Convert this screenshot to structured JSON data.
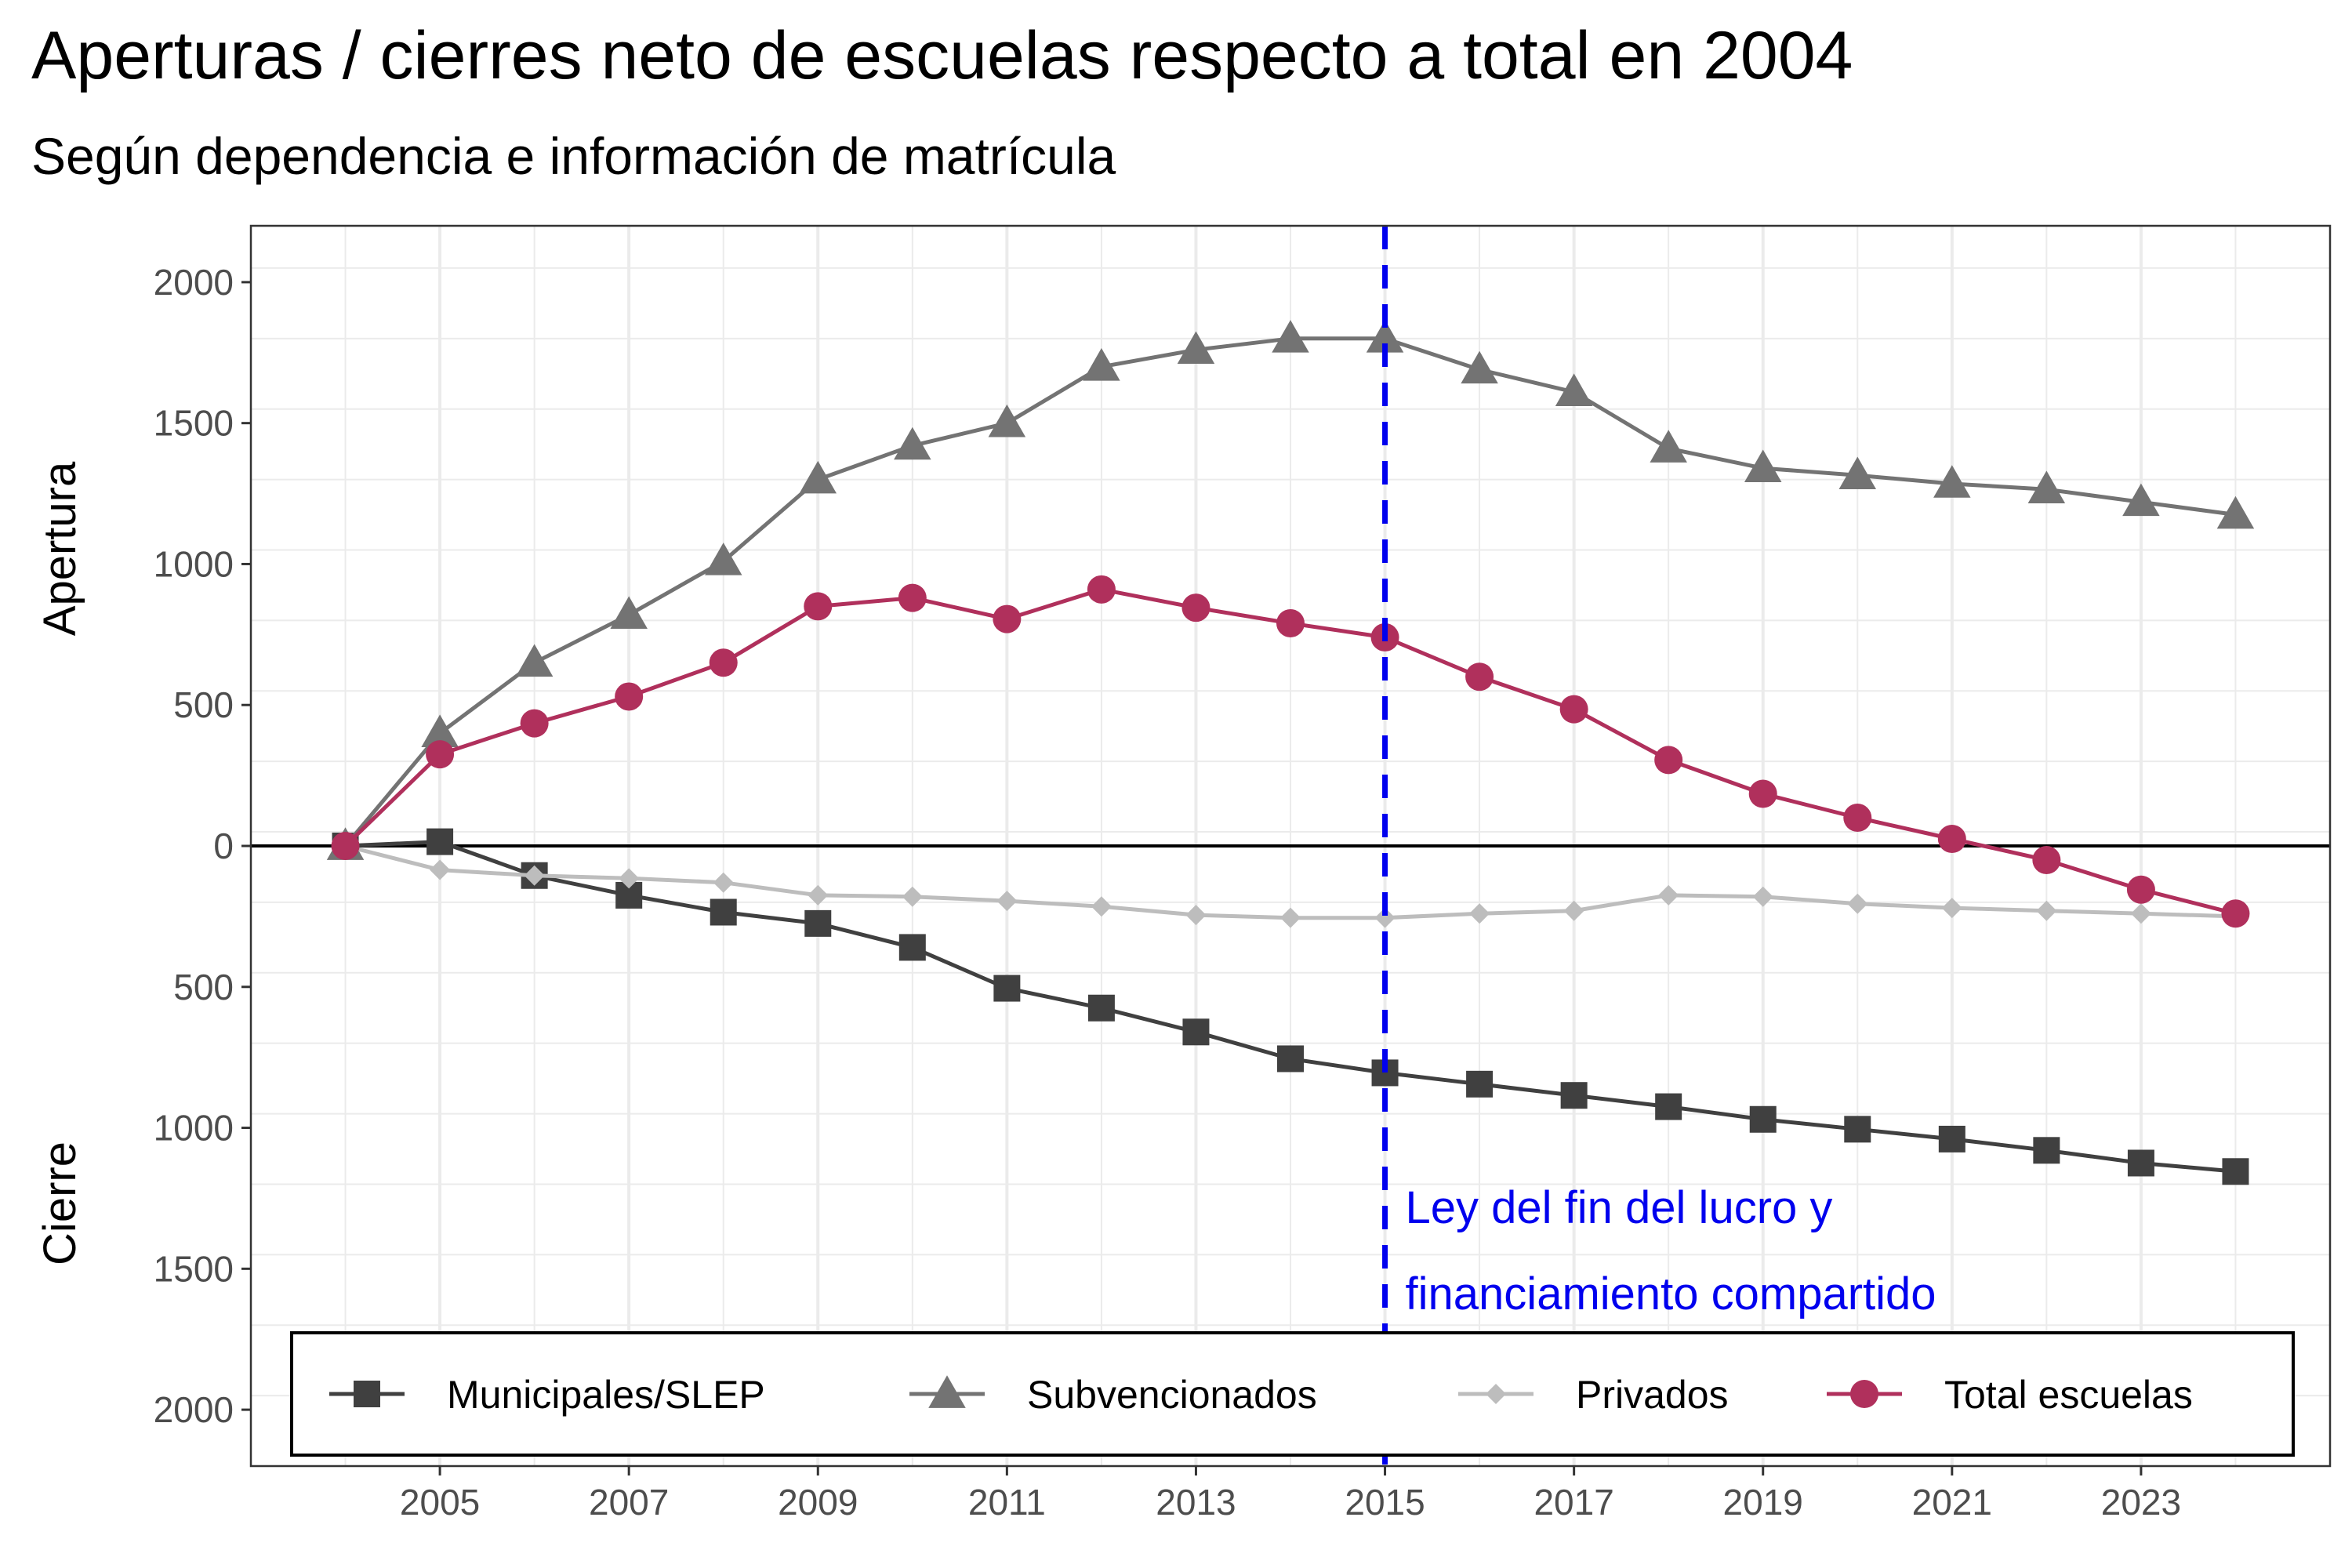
{
  "chart_data": {
    "type": "line",
    "title": "Aperturas / cierres neto de escuelas respecto a total en 2004",
    "subtitle": "Según dependencia e información de matrícula",
    "ylabel_top": "Apertura",
    "ylabel_bottom": "Cierre",
    "xlim": [
      2003,
      2025
    ],
    "ylim": [
      -2200,
      2200
    ],
    "x_ticks": [
      2005,
      2007,
      2009,
      2011,
      2013,
      2015,
      2017,
      2019,
      2021,
      2023
    ],
    "y_ticks": [
      {
        "value": 2000,
        "label": "2000"
      },
      {
        "value": 1500,
        "label": "1500"
      },
      {
        "value": 1000,
        "label": "1000"
      },
      {
        "value": 500,
        "label": "500"
      },
      {
        "value": 0,
        "label": "0"
      },
      {
        "value": -500,
        "label": "500"
      },
      {
        "value": -1000,
        "label": "1000"
      },
      {
        "value": -1500,
        "label": "1500"
      },
      {
        "value": -2000,
        "label": "2000"
      }
    ],
    "grid": true,
    "legend_position": "bottom-inside",
    "x": [
      2004,
      2005,
      2006,
      2007,
      2008,
      2009,
      2010,
      2011,
      2012,
      2013,
      2014,
      2015,
      2016,
      2017,
      2018,
      2019,
      2020,
      2021,
      2022,
      2023,
      2024
    ],
    "series": [
      {
        "name": "Municipales/SLEP",
        "color": "#404040",
        "marker": "square",
        "values": [
          0,
          15,
          -105,
          -175,
          -235,
          -275,
          -360,
          -505,
          -575,
          -660,
          -755,
          -805,
          -845,
          -885,
          -925,
          -970,
          -1005,
          -1040,
          -1080,
          -1125,
          -1155
        ]
      },
      {
        "name": "Subvencionados",
        "color": "#737373",
        "marker": "triangle",
        "values": [
          0,
          400,
          650,
          820,
          1010,
          1300,
          1420,
          1500,
          1700,
          1760,
          1800,
          1800,
          1690,
          1610,
          1410,
          1340,
          1315,
          1285,
          1265,
          1220,
          1175
        ]
      },
      {
        "name": "Privados",
        "color": "#bdbdbd",
        "marker": "diamond",
        "values": [
          0,
          -85,
          -105,
          -115,
          -130,
          -175,
          -180,
          -195,
          -215,
          -245,
          -255,
          -255,
          -240,
          -230,
          -175,
          -180,
          -205,
          -220,
          -230,
          -240,
          -250
        ]
      },
      {
        "name": "Total escuelas",
        "color": "#b0305c",
        "marker": "circle",
        "values": [
          0,
          325,
          435,
          530,
          650,
          850,
          880,
          805,
          910,
          845,
          790,
          740,
          600,
          485,
          305,
          185,
          100,
          25,
          -50,
          -155,
          -240
        ]
      }
    ],
    "annotation": {
      "x": 2015,
      "lines": [
        "Ley del fin del lucro y",
        "financiamiento compartido"
      ],
      "color": "#0000ee"
    }
  }
}
